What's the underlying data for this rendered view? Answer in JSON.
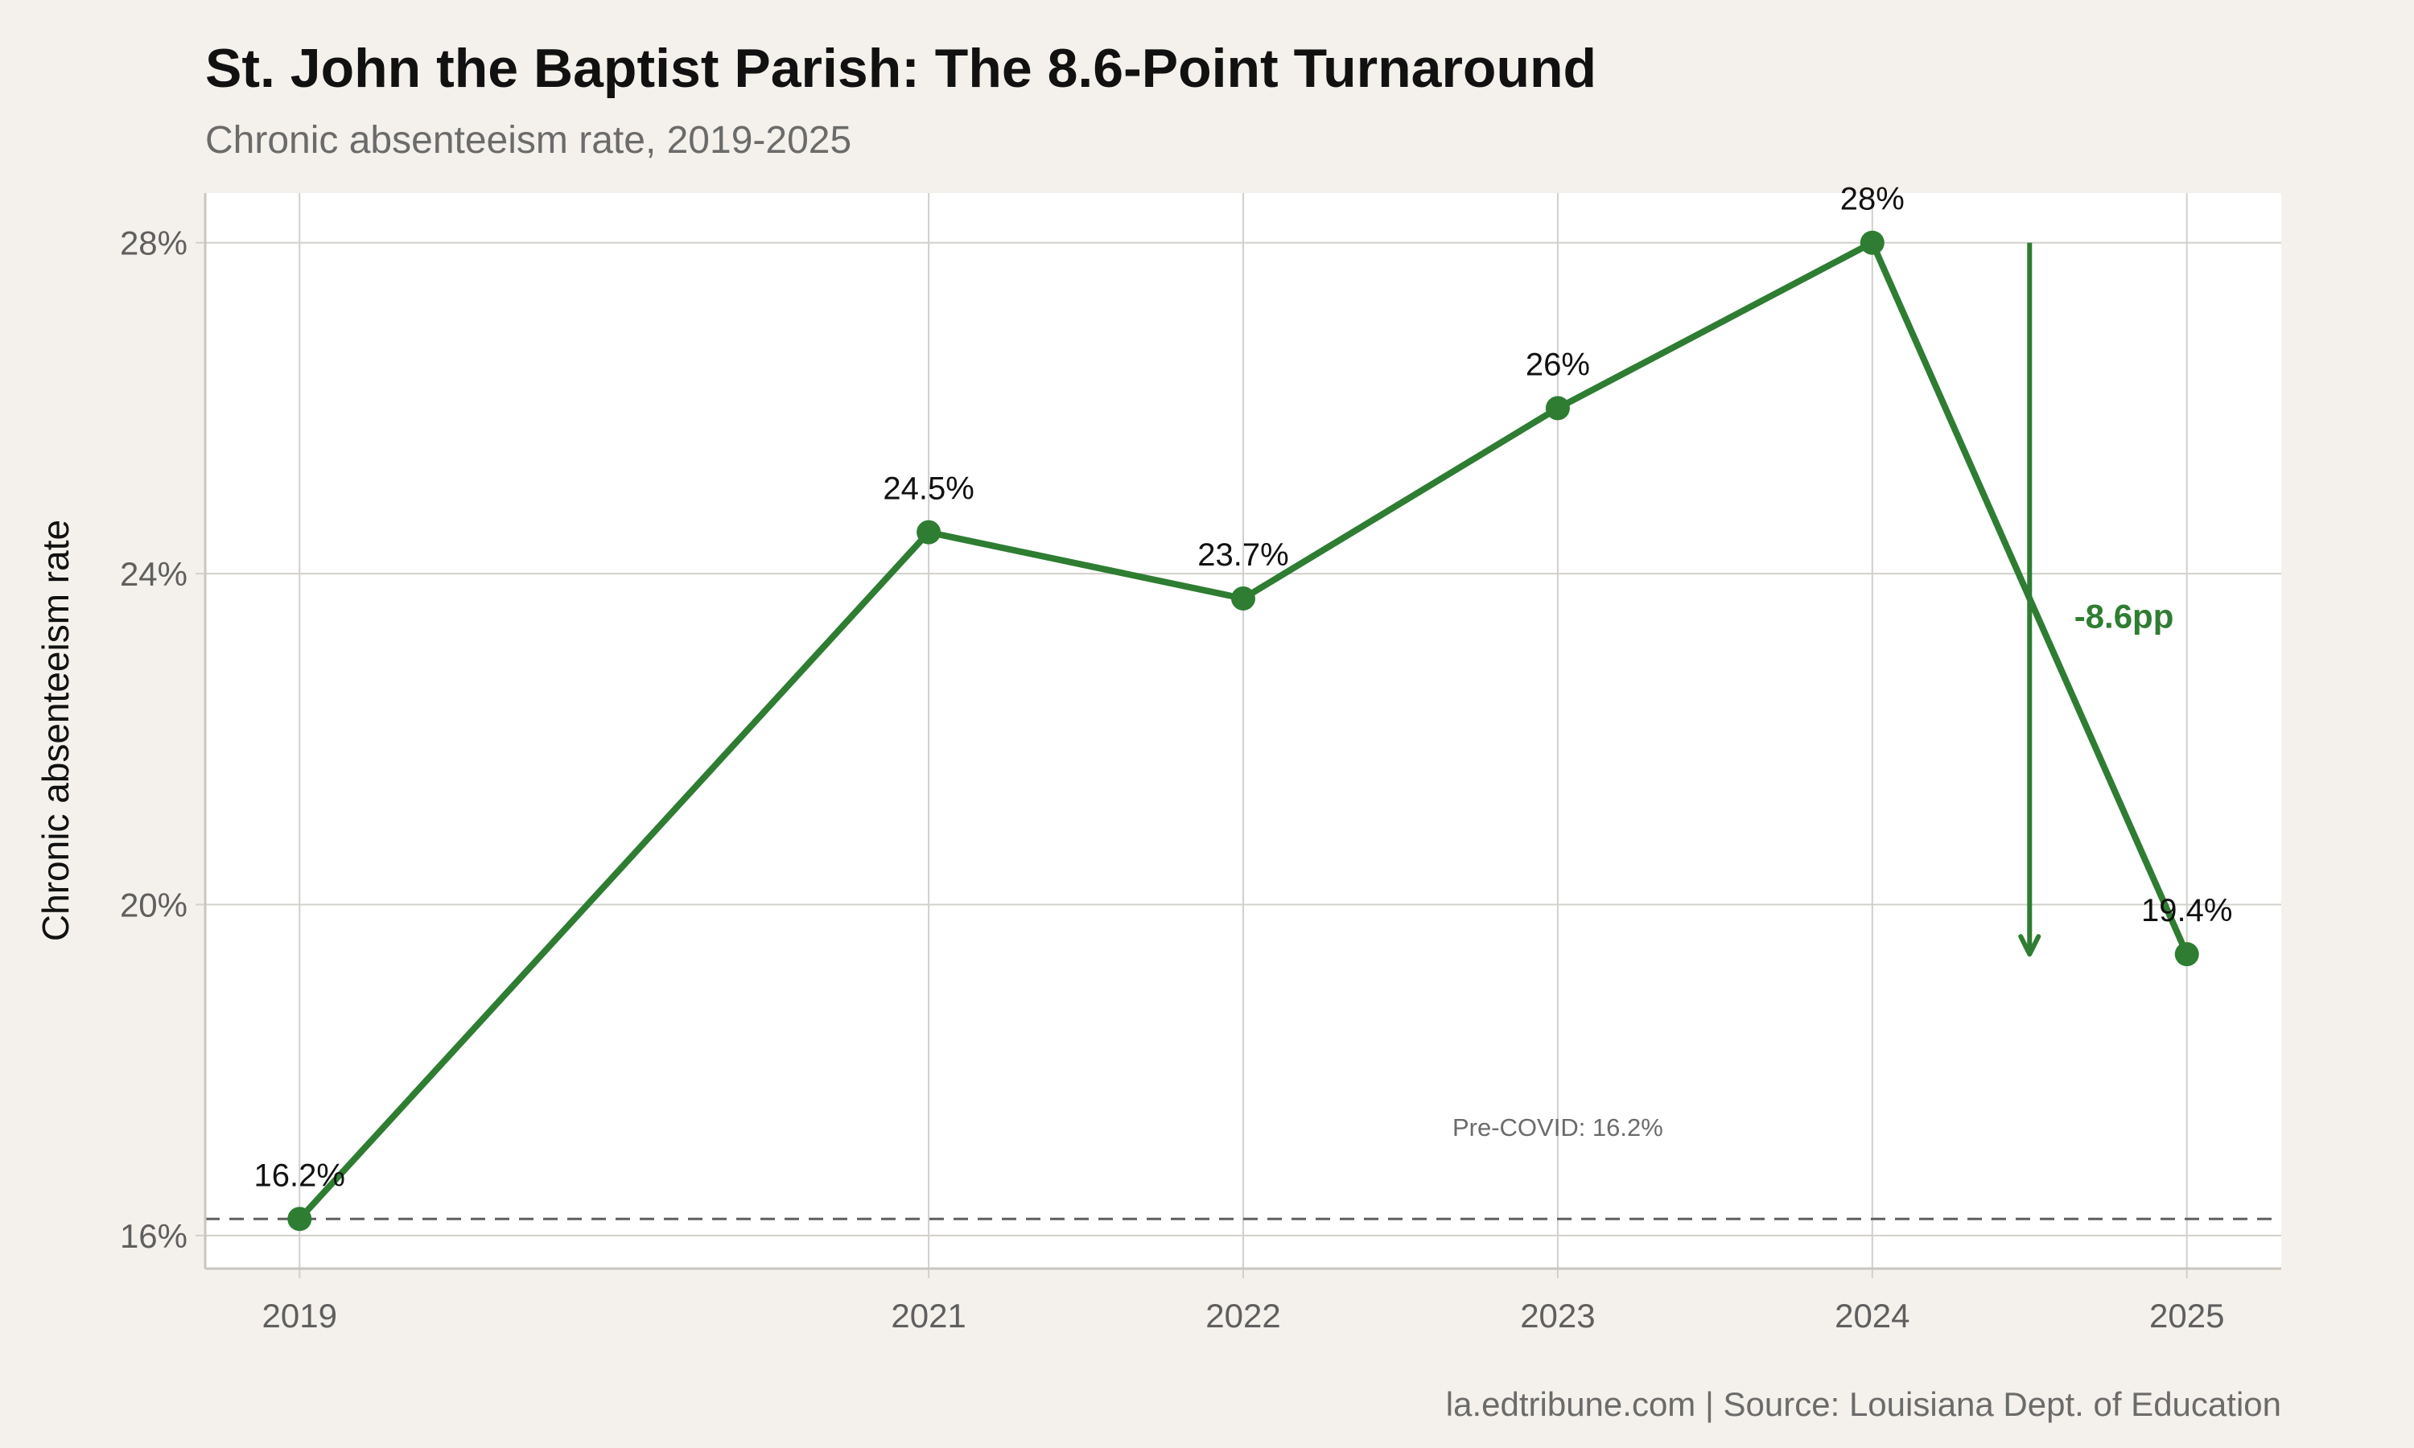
{
  "colors": {
    "background": "#f4f1ec",
    "panel": "#ffffff",
    "grid": "#d2d0cb",
    "series": "#2e7d32",
    "reference_line": "#5f5f5f"
  },
  "chart_data": {
    "type": "line",
    "title": "St. John the Baptist Parish: The 8.6-Point Turnaround",
    "subtitle": "Chronic absenteeism rate, 2019-2025",
    "xlabel": "",
    "ylabel": "Chronic absenteeism rate",
    "caption": "la.edtribune.com | Source: Louisiana Dept. of Education",
    "x": [
      2019,
      2021,
      2022,
      2023,
      2024,
      2025
    ],
    "x_tick_labels": [
      "2019",
      "2021",
      "2022",
      "2023",
      "2024",
      "2025"
    ],
    "xlim": [
      2018.7,
      2025.3
    ],
    "series": [
      {
        "values": [
          16.2,
          24.5,
          23.7,
          26.0,
          28.0,
          19.4
        ],
        "data_labels": [
          "16.2%",
          "24.5%",
          "23.7%",
          "26%",
          "28%",
          "19.4%"
        ]
      }
    ],
    "ylim": [
      15.6,
      28.6
    ],
    "y_ticks": [
      16,
      20,
      24,
      28
    ],
    "y_tick_labels": [
      "16%",
      "20%",
      "24%",
      "28%"
    ],
    "grid": true,
    "reference_line": {
      "y": 16.2,
      "style": "dashed",
      "label": "Pre-COVID: 16.2%",
      "label_x": 2023,
      "label_y": 17.3
    },
    "change_arrow": {
      "x": 2024.5,
      "from": 28.0,
      "to": 19.4,
      "label": "-8.6pp",
      "label_x": 2024.8,
      "label_y": 23.5
    }
  }
}
